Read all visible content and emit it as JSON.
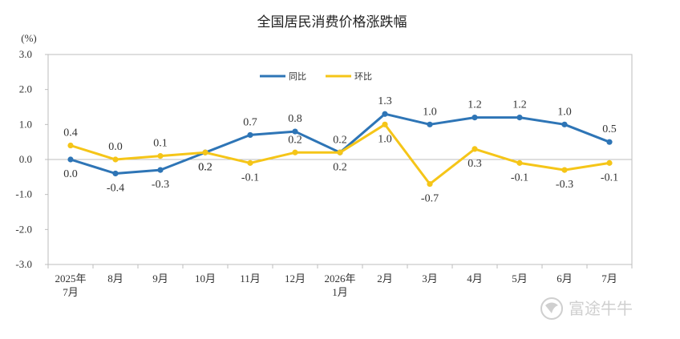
{
  "chart_data": {
    "type": "line",
    "title": "全国居民消费价格涨跌幅",
    "unit": "(%)",
    "categories": [
      [
        "2025年",
        "7月"
      ],
      [
        "8月"
      ],
      [
        "9月"
      ],
      [
        "10月"
      ],
      [
        "11月"
      ],
      [
        "12月"
      ],
      [
        "2026年",
        "1月"
      ],
      [
        "2月"
      ],
      [
        "3月"
      ],
      [
        "4月"
      ],
      [
        "5月"
      ],
      [
        "6月"
      ],
      [
        "7月"
      ]
    ],
    "yticks": [
      "3.0",
      "2.0",
      "1.0",
      "0.0",
      "-1.0",
      "-2.0",
      "-3.0"
    ],
    "ylim": [
      -3.0,
      3.0
    ],
    "legend_position": "top-center",
    "series": [
      {
        "name": "同比",
        "color": "#2E75B6",
        "values": [
          0.0,
          -0.4,
          -0.3,
          0.2,
          0.7,
          0.8,
          0.2,
          1.3,
          1.0,
          1.2,
          1.2,
          1.0,
          0.5
        ],
        "labels": [
          "0.0",
          "-0.4",
          "-0.3",
          "0.2",
          "0.7",
          "0.8",
          "0.2",
          "1.3",
          "1.0",
          "1.2",
          "1.2",
          "1.0",
          "0.5"
        ]
      },
      {
        "name": "环比",
        "color": "#F5C518",
        "values": [
          0.4,
          0.0,
          0.1,
          0.2,
          -0.1,
          0.2,
          0.2,
          1.0,
          -0.7,
          0.3,
          -0.1,
          -0.3,
          -0.1
        ],
        "labels": [
          "0.4",
          "0.0",
          "0.1",
          "0.2",
          "-0.1",
          "0.2",
          "0.2",
          "1.0",
          "-0.7",
          "0.3",
          "-0.1",
          "-0.3",
          "-0.1"
        ]
      }
    ]
  },
  "watermark": {
    "text": "富途牛牛",
    "icon": "futu-logo-icon"
  }
}
